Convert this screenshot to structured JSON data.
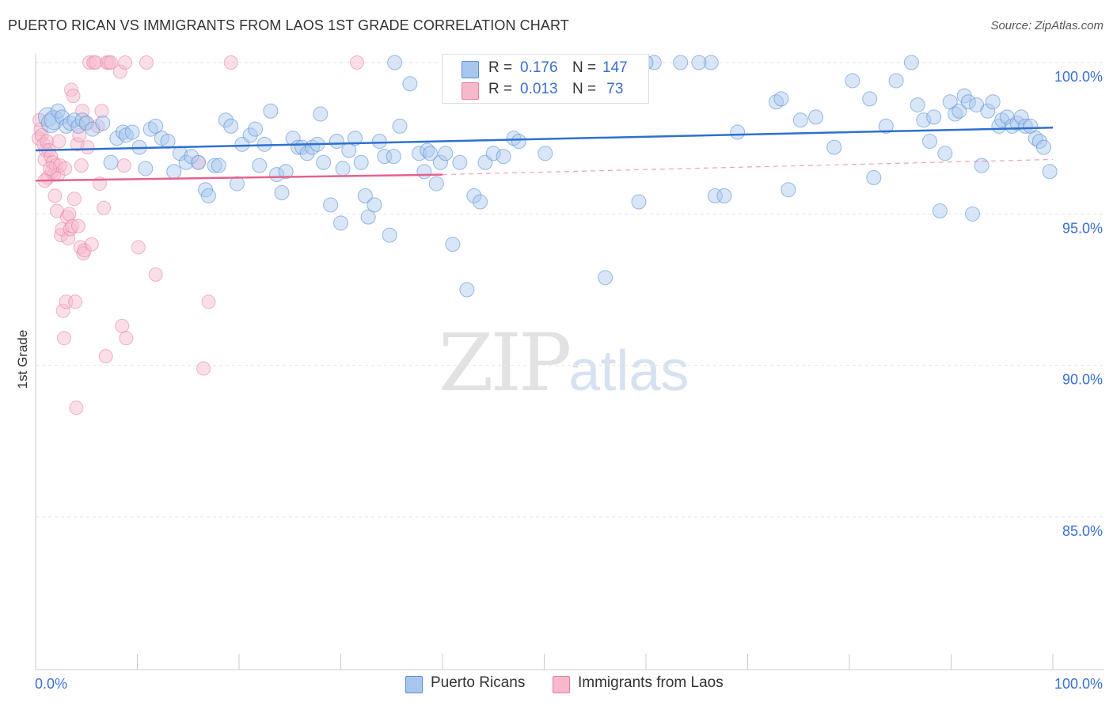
{
  "header": {
    "title": "PUERTO RICAN VS IMMIGRANTS FROM LAOS 1ST GRADE CORRELATION CHART",
    "source": "Source: ZipAtlas.com"
  },
  "watermark": {
    "zip": "ZIP",
    "atlas": "atlas"
  },
  "legend": {
    "rows": [
      {
        "r_label": "R = ",
        "r_value": "0.176",
        "n_label": "N = ",
        "n_value": "147",
        "color": "#a9c7ee"
      },
      {
        "r_label": "R = ",
        "r_value": "0.013",
        "n_label": "N = ",
        "n_value": " 73",
        "color": "#f6b8cb"
      }
    ]
  },
  "bottom_legend": [
    {
      "label": "Puerto Ricans",
      "color": "#a9c7ee"
    },
    {
      "label": "Immigrants from Laos",
      "color": "#f6b8cb"
    }
  ],
  "colors": {
    "blue_fill": "#a9c7ee",
    "blue_stroke": "#5b8fd6",
    "blue_line": "#2f6fd0",
    "pink_fill": "#f6b8cb",
    "pink_stroke": "#e57ea0",
    "pink_line": "#e5628f",
    "tick_label": "#3b6fd0",
    "grid": "#e6e6e6"
  },
  "chart_data": {
    "type": "scatter",
    "title": "PUERTO RICAN VS IMMIGRANTS FROM LAOS 1ST GRADE CORRELATION CHART",
    "xlabel": "",
    "ylabel": "1st Grade",
    "xlim": [
      0,
      100
    ],
    "ylim": [
      80.5,
      101
    ],
    "x_tick_labels": [
      "0.0%",
      "100.0%"
    ],
    "y_ticks": [
      85,
      90,
      95,
      100
    ],
    "y_tick_labels": [
      "85.0%",
      "90.0%",
      "95.0%",
      "100.0%"
    ],
    "grid": true,
    "series": [
      {
        "name": "Puerto Ricans",
        "r": 0.176,
        "n": 147,
        "trend": {
          "x": [
            0,
            100
          ],
          "y": [
            97.1,
            97.85
          ]
        },
        "points": [
          [
            1.2,
            98.2
          ],
          [
            1.5,
            98.0
          ],
          [
            1.8,
            98.1
          ],
          [
            2.2,
            98.4
          ],
          [
            2.6,
            98.2
          ],
          [
            3.0,
            97.9
          ],
          [
            3.4,
            98.0
          ],
          [
            3.8,
            98.1
          ],
          [
            4.2,
            97.9
          ],
          [
            4.6,
            98.1
          ],
          [
            5.0,
            98.0
          ],
          [
            5.6,
            97.8
          ],
          [
            6.6,
            98.0
          ],
          [
            7.4,
            96.7
          ],
          [
            8.0,
            97.5
          ],
          [
            8.6,
            97.7
          ],
          [
            8.9,
            97.6
          ],
          [
            9.5,
            97.7
          ],
          [
            10.2,
            97.2
          ],
          [
            10.8,
            96.5
          ],
          [
            11.3,
            97.8
          ],
          [
            11.8,
            97.9
          ],
          [
            12.4,
            97.5
          ],
          [
            13.0,
            97.4
          ],
          [
            13.6,
            96.4
          ],
          [
            14.2,
            97.0
          ],
          [
            14.8,
            96.7
          ],
          [
            15.3,
            96.9
          ],
          [
            16.0,
            96.7
          ],
          [
            16.7,
            95.8
          ],
          [
            17.0,
            95.6
          ],
          [
            17.6,
            96.6
          ],
          [
            18.0,
            96.6
          ],
          [
            18.7,
            98.1
          ],
          [
            19.2,
            97.9
          ],
          [
            19.8,
            96.0
          ],
          [
            20.3,
            97.3
          ],
          [
            21.1,
            97.6
          ],
          [
            21.6,
            97.8
          ],
          [
            22.0,
            96.6
          ],
          [
            22.5,
            97.3
          ],
          [
            23.1,
            98.4
          ],
          [
            23.7,
            96.3
          ],
          [
            24.2,
            95.7
          ],
          [
            24.6,
            96.4
          ],
          [
            25.3,
            97.5
          ],
          [
            25.8,
            97.2
          ],
          [
            26.2,
            97.2
          ],
          [
            26.7,
            97.0
          ],
          [
            27.2,
            97.2
          ],
          [
            27.7,
            97.3
          ],
          [
            28.0,
            98.3
          ],
          [
            28.3,
            96.7
          ],
          [
            29.0,
            95.3
          ],
          [
            29.6,
            97.4
          ],
          [
            30.0,
            94.7
          ],
          [
            30.2,
            96.5
          ],
          [
            30.8,
            97.1
          ],
          [
            31.4,
            97.5
          ],
          [
            32.0,
            96.7
          ],
          [
            32.4,
            95.6
          ],
          [
            32.7,
            94.9
          ],
          [
            33.3,
            95.3
          ],
          [
            33.8,
            97.4
          ],
          [
            34.3,
            96.9
          ],
          [
            34.8,
            94.3
          ],
          [
            35.2,
            96.9
          ],
          [
            35.8,
            97.9
          ],
          [
            36.8,
            99.3
          ],
          [
            37.7,
            97.0
          ],
          [
            38.2,
            96.4
          ],
          [
            38.5,
            97.1
          ],
          [
            38.8,
            97.0
          ],
          [
            39.4,
            96.0
          ],
          [
            39.8,
            96.7
          ],
          [
            40.3,
            97.0
          ],
          [
            41.0,
            94.0
          ],
          [
            41.7,
            96.7
          ],
          [
            42.4,
            92.5
          ],
          [
            43.1,
            95.6
          ],
          [
            43.7,
            95.4
          ],
          [
            44.2,
            96.7
          ],
          [
            45.0,
            97.0
          ],
          [
            46.0,
            96.9
          ],
          [
            47.0,
            97.5
          ],
          [
            47.5,
            97.4
          ],
          [
            50.1,
            97.0
          ],
          [
            53.5,
            100.0
          ],
          [
            56.0,
            92.9
          ],
          [
            59.3,
            95.4
          ],
          [
            60.8,
            100.0
          ],
          [
            66.8,
            95.6
          ],
          [
            66.4,
            100.0
          ],
          [
            69.0,
            97.7
          ],
          [
            67.7,
            95.6
          ],
          [
            72.8,
            98.7
          ],
          [
            73.3,
            98.8
          ],
          [
            74.0,
            95.8
          ],
          [
            75.2,
            98.1
          ],
          [
            76.7,
            98.2
          ],
          [
            78.5,
            97.2
          ],
          [
            80.3,
            99.4
          ],
          [
            82.0,
            98.8
          ],
          [
            82.4,
            96.2
          ],
          [
            83.6,
            97.9
          ],
          [
            84.6,
            99.4
          ],
          [
            86.1,
            100.0
          ],
          [
            86.7,
            98.6
          ],
          [
            87.3,
            98.1
          ],
          [
            87.9,
            97.4
          ],
          [
            88.3,
            98.2
          ],
          [
            88.9,
            95.1
          ],
          [
            89.4,
            97.0
          ],
          [
            89.9,
            98.7
          ],
          [
            90.4,
            98.3
          ],
          [
            90.8,
            98.4
          ],
          [
            91.3,
            98.9
          ],
          [
            91.7,
            98.7
          ],
          [
            92.1,
            95.0
          ],
          [
            92.5,
            98.6
          ],
          [
            93.0,
            96.6
          ],
          [
            93.6,
            98.4
          ],
          [
            94.1,
            98.7
          ],
          [
            94.7,
            97.9
          ],
          [
            95.0,
            98.1
          ],
          [
            95.5,
            98.2
          ],
          [
            96.0,
            97.9
          ],
          [
            96.5,
            98.0
          ],
          [
            96.9,
            98.2
          ],
          [
            97.3,
            97.9
          ],
          [
            97.8,
            97.9
          ],
          [
            98.3,
            97.5
          ],
          [
            98.7,
            97.4
          ],
          [
            99.1,
            97.2
          ],
          [
            99.7,
            96.4
          ],
          [
            57.0,
            100.0
          ],
          [
            60.0,
            100.0
          ],
          [
            63.4,
            100.0
          ],
          [
            65.2,
            100.0
          ],
          [
            35.3,
            100.0
          ],
          [
            54.8,
            100.0
          ],
          [
            50.0,
            100.0
          ]
        ]
      },
      {
        "name": "Immigrants from Laos",
        "r": 0.013,
        "n": 73,
        "trend": {
          "x": [
            0,
            40,
            100
          ],
          "y": [
            96.1,
            96.3,
            96.8
          ]
        },
        "points": [
          [
            0.3,
            97.5
          ],
          [
            0.5,
            97.8
          ],
          [
            0.6,
            97.6
          ],
          [
            0.8,
            97.3
          ],
          [
            0.9,
            96.8
          ],
          [
            1.0,
            97.1
          ],
          [
            1.1,
            97.4
          ],
          [
            1.2,
            96.2
          ],
          [
            1.3,
            97.1
          ],
          [
            1.5,
            96.9
          ],
          [
            1.6,
            96.4
          ],
          [
            1.7,
            96.7
          ],
          [
            1.8,
            96.3
          ],
          [
            1.9,
            95.6
          ],
          [
            2.0,
            96.6
          ],
          [
            2.1,
            95.1
          ],
          [
            2.2,
            96.3
          ],
          [
            2.3,
            97.4
          ],
          [
            2.4,
            96.6
          ],
          [
            2.5,
            94.3
          ],
          [
            2.6,
            94.5
          ],
          [
            2.7,
            91.8
          ],
          [
            2.8,
            90.9
          ],
          [
            2.9,
            96.5
          ],
          [
            3.0,
            92.1
          ],
          [
            3.1,
            94.9
          ],
          [
            3.2,
            94.2
          ],
          [
            3.3,
            95.0
          ],
          [
            3.4,
            94.5
          ],
          [
            3.5,
            99.1
          ],
          [
            3.6,
            94.6
          ],
          [
            3.7,
            98.9
          ],
          [
            3.8,
            95.5
          ],
          [
            3.9,
            92.1
          ],
          [
            4.0,
            88.6
          ],
          [
            4.1,
            97.3
          ],
          [
            4.2,
            94.6
          ],
          [
            4.3,
            97.6
          ],
          [
            4.4,
            93.9
          ],
          [
            4.5,
            96.6
          ],
          [
            4.6,
            98.4
          ],
          [
            4.7,
            93.7
          ],
          [
            4.8,
            93.8
          ],
          [
            4.9,
            98.0
          ],
          [
            5.1,
            97.2
          ],
          [
            5.3,
            100.0
          ],
          [
            5.5,
            94.0
          ],
          [
            5.7,
            100.0
          ],
          [
            5.9,
            100.0
          ],
          [
            6.1,
            97.9
          ],
          [
            6.3,
            96.0
          ],
          [
            6.5,
            98.4
          ],
          [
            6.7,
            95.2
          ],
          [
            6.9,
            90.3
          ],
          [
            7.0,
            100.0
          ],
          [
            7.2,
            100.0
          ],
          [
            7.4,
            100.0
          ],
          [
            8.3,
            99.7
          ],
          [
            8.5,
            91.3
          ],
          [
            8.7,
            96.6
          ],
          [
            8.8,
            100.0
          ],
          [
            8.9,
            90.9
          ],
          [
            10.1,
            93.9
          ],
          [
            10.9,
            100.0
          ],
          [
            11.8,
            93.0
          ],
          [
            16.0,
            96.7
          ],
          [
            16.5,
            89.9
          ],
          [
            17.0,
            92.1
          ],
          [
            19.2,
            100.0
          ],
          [
            31.6,
            100.0
          ],
          [
            0.4,
            98.1
          ],
          [
            0.9,
            96.1
          ],
          [
            1.4,
            96.5
          ]
        ]
      }
    ]
  }
}
